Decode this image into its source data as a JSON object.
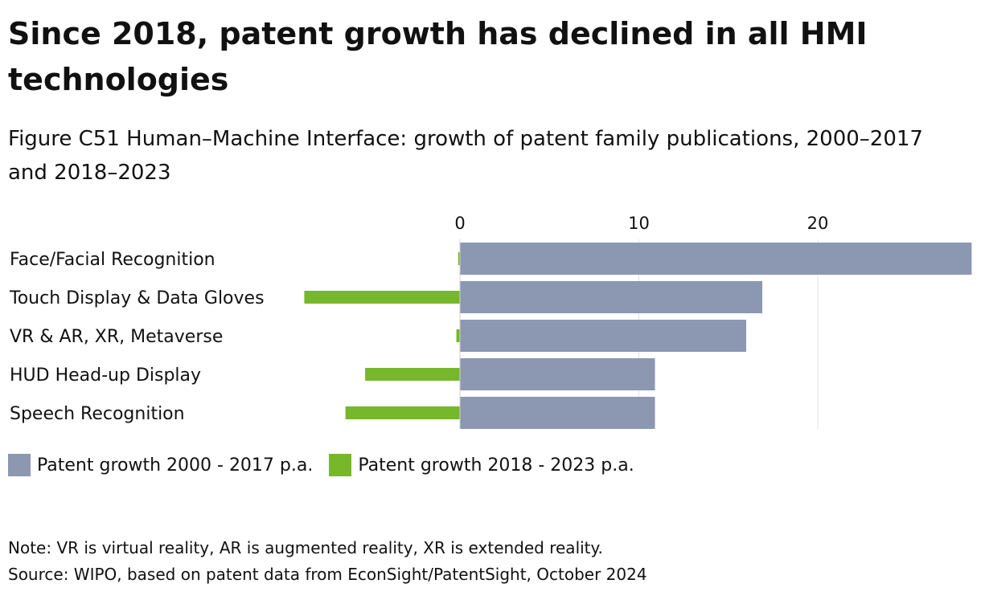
{
  "title": "Since 2018, patent growth has declined in all HMI technologies",
  "subtitle": "Figure C51 Human–Machine Interface: growth of patent family publications, 2000–2017 and 2018–2023",
  "note": "Note: VR is virtual reality, AR is augmented reality, XR is extended reality.",
  "source": "Source: WIPO, based on patent data from EconSight/PatentSight, October 2024",
  "chart_data": {
    "type": "bar",
    "orientation": "horizontal",
    "categories": [
      "Face/Facial Recognition",
      "Touch Display & Data Gloves",
      "VR & AR, XR, Metaverse",
      "HUD Head-up Display",
      "Speech Recognition"
    ],
    "series": [
      {
        "name": "Patent growth 2000 - 2017 p.a.",
        "color": "#8c97b2",
        "values": [
          28.6,
          16.9,
          16.0,
          10.9,
          10.9
        ]
      },
      {
        "name": "Patent growth 2018 - 2023 p.a.",
        "color": "#76b82a",
        "values": [
          -0.1,
          -8.7,
          -0.2,
          -5.3,
          -6.4
        ]
      }
    ],
    "xticks": [
      0,
      10,
      20
    ],
    "tick_labels": [
      "0",
      "10",
      "20"
    ],
    "xlim": [
      -25.7,
      28.6
    ],
    "grid": true,
    "legend_position": "bottom-left"
  }
}
